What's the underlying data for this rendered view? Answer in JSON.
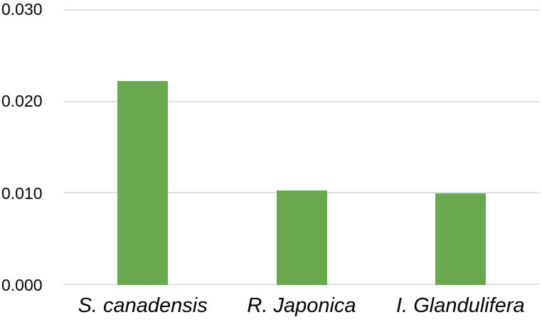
{
  "chart_data": {
    "type": "bar",
    "title": "",
    "xlabel": "",
    "ylabel": "",
    "categories": [
      "S. canadensis",
      "R. Japonica",
      "I. Glandulifera"
    ],
    "values": [
      0.0222,
      0.0103,
      0.01
    ],
    "ylim": [
      0,
      0.03
    ],
    "yticks": [
      {
        "value": 0.0,
        "label": "0.000"
      },
      {
        "value": 0.01,
        "label": "0.010"
      },
      {
        "value": 0.02,
        "label": "0.020"
      },
      {
        "value": 0.03,
        "label": "0.030"
      }
    ],
    "grid": true,
    "legend": false,
    "category_label_style": "italic",
    "colors": {
      "bar": "#6aa84f",
      "gridline": "#e0e0e0",
      "text": "#000000",
      "background": "#ffffff"
    }
  }
}
